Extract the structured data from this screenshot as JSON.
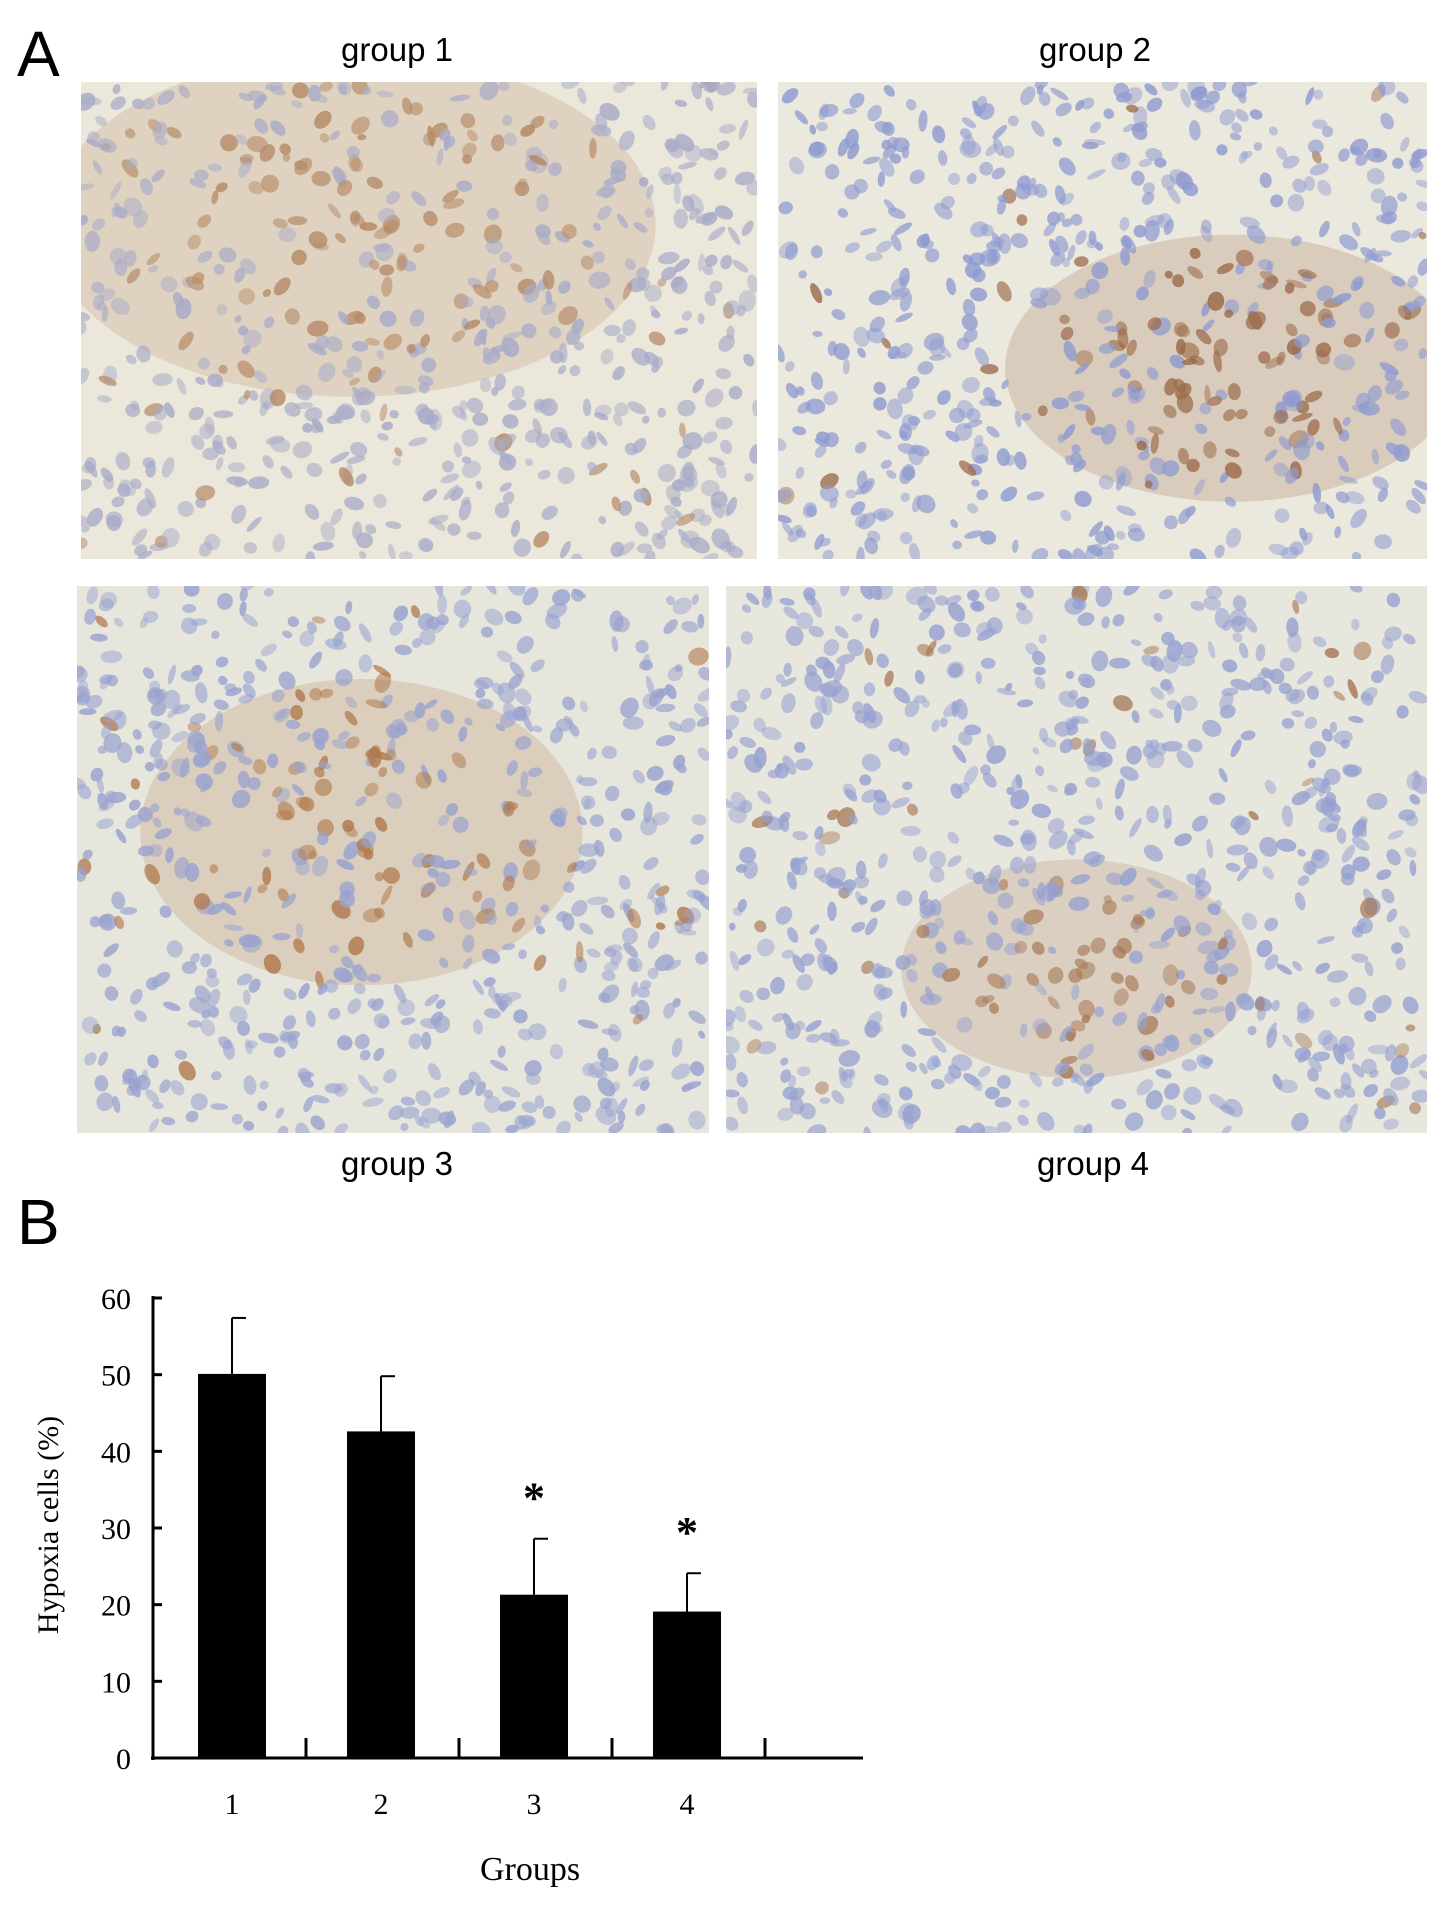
{
  "panels": {
    "A": {
      "letter": "A",
      "images": [
        {
          "label": "group 1",
          "stain": "moderate diffuse brown",
          "colors": {
            "background": "#ebe7da",
            "nucleus": "#a8abc8",
            "stain": "#b58a66"
          }
        },
        {
          "label": "group 2",
          "stain": "dense brown focus right",
          "colors": {
            "background": "#ebe8dd",
            "nucleus": "#8f9bd0",
            "stain": "#9c6a4a"
          }
        },
        {
          "label": "group 3",
          "stain": "central brown region",
          "colors": {
            "background": "#e7e6dc",
            "nucleus": "#98a2cf",
            "stain": "#b07a4e"
          }
        },
        {
          "label": "group 4",
          "stain": "sparse brown foci",
          "colors": {
            "background": "#e8e7de",
            "nucleus": "#96a1d0",
            "stain": "#a87a58"
          }
        }
      ]
    },
    "B": {
      "letter": "B"
    }
  },
  "chart_data": {
    "type": "bar",
    "categories": [
      "1",
      "2",
      "3",
      "4"
    ],
    "values": [
      50.1,
      42.6,
      21.3,
      19.1
    ],
    "error_upper": [
      57.4,
      49.8,
      28.6,
      24.1
    ],
    "annotations": [
      "",
      "",
      "*",
      "*"
    ],
    "xlabel": "Groups",
    "ylabel": "Hypoxia  cells (%)",
    "ylim": [
      0,
      60
    ],
    "yticks": [
      0,
      10,
      20,
      30,
      40,
      50,
      60
    ],
    "grid": false,
    "colors": {
      "bar": "#000000"
    }
  }
}
